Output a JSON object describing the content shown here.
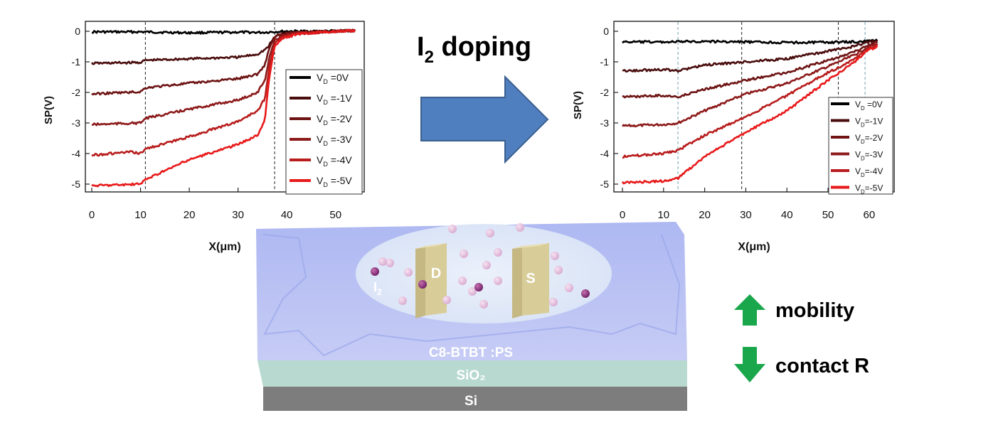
{
  "header": {
    "doping_label": "I",
    "doping_sub": "2",
    "doping_rest": " doping"
  },
  "arrow_color": "#4f7fbf",
  "chart_data": [
    {
      "type": "line",
      "ylabel": "SP(V)",
      "xlabel": "X(μm)",
      "xlim": [
        0,
        55
      ],
      "ylim": [
        -5.3,
        0.2
      ],
      "xticks": [
        0,
        10,
        20,
        30,
        40,
        50
      ],
      "yticks": [
        0,
        -1,
        -2,
        -3,
        -4,
        -5
      ],
      "vlines": [
        11,
        37.5
      ],
      "legend": {
        "position": "right",
        "entries": [
          {
            "main": "V",
            "sub": "D",
            "rest": " =0V"
          },
          {
            "main": "V",
            "sub": "D",
            "rest": " =-1V"
          },
          {
            "main": "V",
            "sub": "D",
            "rest": " =-2V"
          },
          {
            "main": "V",
            "sub": "D",
            "rest": " =-3V"
          },
          {
            "main": "V",
            "sub": "D",
            "rest": " =-4V"
          },
          {
            "main": "V",
            "sub": "D",
            "rest": " =-5V"
          }
        ]
      },
      "series": [
        {
          "color": "#000000",
          "x": [
            0,
            10,
            20,
            30,
            35,
            37,
            40,
            45,
            50,
            54
          ],
          "y": [
            -0.02,
            -0.02,
            -0.05,
            -0.03,
            -0.04,
            -0.02,
            0.0,
            0.0,
            0.01,
            0.02
          ]
        },
        {
          "color": "#4a0d0d",
          "x": [
            0,
            10,
            11,
            20,
            30,
            34,
            36,
            37,
            38,
            40,
            45,
            50,
            54
          ],
          "y": [
            -1.05,
            -1.02,
            -0.95,
            -0.9,
            -0.85,
            -0.75,
            -0.55,
            -0.3,
            -0.12,
            -0.05,
            -0.02,
            0.0,
            0.02
          ]
        },
        {
          "color": "#6e1414",
          "x": [
            0,
            10,
            11,
            20,
            30,
            34,
            35.5,
            36.5,
            37.5,
            39,
            42,
            50,
            54
          ],
          "y": [
            -2.05,
            -1.98,
            -1.85,
            -1.7,
            -1.55,
            -1.4,
            -1.1,
            -0.5,
            -0.2,
            -0.1,
            -0.05,
            0.0,
            0.02
          ]
        },
        {
          "color": "#8c1a1a",
          "x": [
            0,
            10,
            11,
            20,
            30,
            34,
            35.5,
            36.5,
            37.5,
            39,
            42,
            50,
            54
          ],
          "y": [
            -3.05,
            -3.0,
            -2.85,
            -2.55,
            -2.25,
            -2.0,
            -1.6,
            -0.8,
            -0.3,
            -0.15,
            -0.05,
            0.0,
            0.02
          ]
        },
        {
          "color": "#b81c1c",
          "x": [
            0,
            8,
            10,
            11,
            20,
            30,
            34,
            35.5,
            36.5,
            37.5,
            39,
            42,
            50,
            54
          ],
          "y": [
            -4.05,
            -3.95,
            -4.0,
            -3.85,
            -3.45,
            -2.95,
            -2.6,
            -2.2,
            -1.1,
            -0.4,
            -0.2,
            -0.08,
            0.0,
            0.02
          ]
        },
        {
          "color": "#e8191a",
          "x": [
            0,
            10,
            11,
            20,
            30,
            34,
            35.5,
            36.5,
            37.5,
            39,
            42,
            50,
            54
          ],
          "y": [
            -5.05,
            -5.0,
            -4.85,
            -4.2,
            -3.7,
            -3.4,
            -2.9,
            -1.4,
            -0.5,
            -0.25,
            -0.1,
            0.0,
            0.02
          ]
        }
      ]
    },
    {
      "type": "line",
      "ylabel": "SP(V)",
      "xlabel": "X(μm)",
      "xlim": [
        0,
        64
      ],
      "ylim": [
        -5.3,
        0.2
      ],
      "xticks": [
        0,
        10,
        20,
        30,
        40,
        50,
        60
      ],
      "yticks": [
        0,
        -1,
        -2,
        -3,
        -4,
        -5
      ],
      "vlines": [
        13.5,
        29,
        52.5,
        59
      ],
      "legend": {
        "position": "right",
        "entries": [
          {
            "main": "V",
            "sub": "D",
            "rest": " =0V"
          },
          {
            "main": "V",
            "sub": "D",
            "rest": "=-1V"
          },
          {
            "main": "V",
            "sub": "D",
            "rest": "=-2V"
          },
          {
            "main": "V",
            "sub": "D",
            "rest": "=-3V"
          },
          {
            "main": "V",
            "sub": "D",
            "rest": "=-4V"
          },
          {
            "main": "V",
            "sub": "D",
            "rest": "=-5V"
          }
        ]
      },
      "series": [
        {
          "color": "#000000",
          "x": [
            0,
            10,
            20,
            30,
            40,
            50,
            56,
            60,
            62
          ],
          "y": [
            -0.35,
            -0.35,
            -0.33,
            -0.35,
            -0.37,
            -0.36,
            -0.35,
            -0.32,
            -0.3
          ]
        },
        {
          "color": "#4a0d0d",
          "x": [
            0,
            10,
            13.5,
            20,
            30,
            40,
            50,
            56,
            60,
            62
          ],
          "y": [
            -1.3,
            -1.25,
            -1.3,
            -1.1,
            -1.0,
            -0.9,
            -0.65,
            -0.5,
            -0.35,
            -0.3
          ]
        },
        {
          "color": "#6e1414",
          "x": [
            0,
            10,
            13.5,
            20,
            30,
            40,
            50,
            56,
            60,
            62
          ],
          "y": [
            -2.15,
            -2.1,
            -2.15,
            -1.9,
            -1.6,
            -1.35,
            -0.95,
            -0.7,
            -0.45,
            -0.35
          ]
        },
        {
          "color": "#8c1a1a",
          "x": [
            0,
            10,
            13.5,
            20,
            30,
            40,
            50,
            56,
            60,
            62
          ],
          "y": [
            -3.1,
            -3.05,
            -3.0,
            -2.6,
            -2.05,
            -1.7,
            -1.15,
            -0.8,
            -0.5,
            -0.4
          ]
        },
        {
          "color": "#b81c1c",
          "x": [
            0,
            10,
            13.5,
            20,
            30,
            40,
            50,
            56,
            60,
            62
          ],
          "y": [
            -4.1,
            -4.0,
            -3.9,
            -3.4,
            -2.8,
            -2.1,
            -1.35,
            -0.95,
            -0.55,
            -0.45
          ]
        },
        {
          "color": "#e8191a",
          "x": [
            0,
            10,
            13.5,
            20,
            30,
            40,
            50,
            56,
            60,
            62
          ],
          "y": [
            -4.95,
            -4.9,
            -4.8,
            -4.1,
            -3.3,
            -2.6,
            -1.6,
            -1.05,
            -0.6,
            -0.5
          ]
        }
      ]
    }
  ],
  "device": {
    "drain_label": "D",
    "source_label": "S",
    "iodine_label": "I",
    "iodine_sub": "2",
    "layer_top": "C8-BTBT :PS",
    "layer_mid": "SiO₂",
    "layer_bottom": "Si"
  },
  "effects": {
    "mobility_label": "mobility",
    "contact_label": "contact R",
    "arrow_color": "#1aa64b"
  }
}
